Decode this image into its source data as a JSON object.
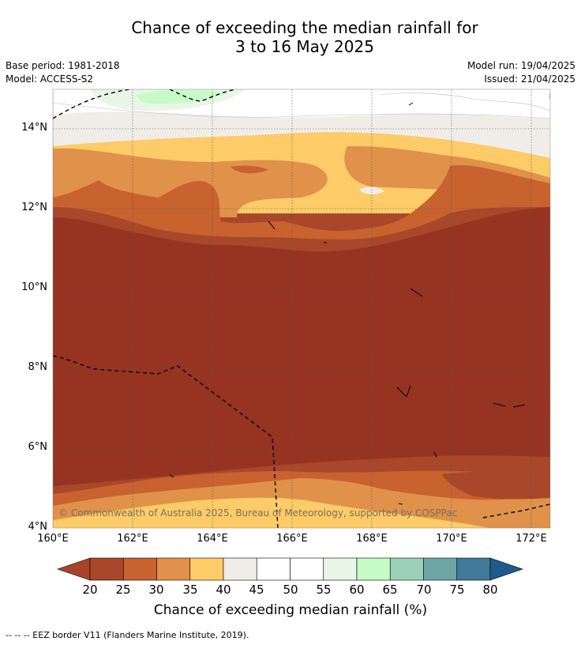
{
  "title_line1": "Chance of exceeding the median rainfall for",
  "title_line2": "3 to 16 May 2025",
  "base_period": "Base period: 1981-2018",
  "model": "Model: ACCESS-S2",
  "model_run": "Model run: 19/04/2025",
  "issued": "Issued: 21/04/2025",
  "copyright": "© Commonwealth of Australia 2025, Bureau of Meteorology, supported by COSPPac",
  "lat_labels": [
    "14°N",
    "12°N",
    "10°N",
    "8°N",
    "6°N",
    "4°N"
  ],
  "lon_labels": [
    "160°E",
    "162°E",
    "164°E",
    "166°E",
    "168°E",
    "170°E",
    "172°E"
  ],
  "colorbar": {
    "title": "Chance of exceeding median rainfall (%)",
    "ticks": [
      "20",
      "25",
      "30",
      "35",
      "40",
      "45",
      "50",
      "55",
      "60",
      "65",
      "70",
      "75",
      "80"
    ],
    "under_color": "#a8432a",
    "over_color": "#1f5a8c",
    "colors": [
      "#a8472a",
      "#c8622e",
      "#e0914a",
      "#fdcb67",
      "#f0ede8",
      "#ffffff",
      "#ffffff",
      "#e9f6e7",
      "#c6fbc7",
      "#9bd0b7",
      "#6ea6a6",
      "#407a9a"
    ]
  },
  "map_colors": {
    "c20": "#963421",
    "c25": "#a8472a",
    "c30": "#c8622e",
    "c35": "#e0914a",
    "c40": "#fdcb67",
    "c45": "#f0ede8",
    "c55": "#e9f6e7",
    "c60": "#c6fbc7"
  },
  "footnote": "--  --  -- EEZ border V11 (Flanders Marine Institute, 2019)."
}
